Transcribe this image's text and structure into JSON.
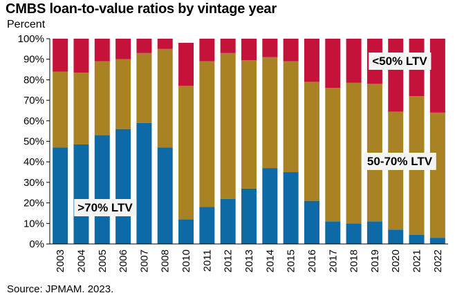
{
  "header": {
    "title": "CMBS loan-to-value ratios by vintage year",
    "unit_label": "Percent"
  },
  "footer": {
    "source": "Source: JPMAM. 2023."
  },
  "colors": {
    "gt70": "#0e6aa6",
    "mid": "#a98224",
    "lt50": "#c4123b",
    "label_bg": "#f4f4f4"
  },
  "chart_data": {
    "type": "bar",
    "stacked": true,
    "categories": [
      "2003",
      "2004",
      "2005",
      "2006",
      "2007",
      "2008",
      "2010",
      "2011",
      "2012",
      "2013",
      "2014",
      "2015",
      "2016",
      "2017",
      "2018",
      "2019",
      "2020",
      "2021",
      "2022"
    ],
    "ylim": [
      0,
      100
    ],
    "yticks": [
      "0%",
      "10%",
      "20%",
      "30%",
      "40%",
      "50%",
      "60%",
      "70%",
      "80%",
      "90%",
      "100%"
    ],
    "grid": false,
    "series": [
      {
        "name": ">70% LTV",
        "values": [
          47,
          48.5,
          53,
          56,
          59,
          47,
          12,
          18,
          22,
          27,
          37,
          35,
          21,
          11,
          10,
          11,
          7,
          4.5,
          3
        ]
      },
      {
        "name": "50-70% LTV",
        "values": [
          37,
          35,
          36,
          34,
          34,
          48,
          65,
          71,
          71,
          62.5,
          54,
          54,
          58,
          65,
          68.5,
          67,
          57.5,
          67.5,
          61
        ]
      },
      {
        "name": "<50% LTV",
        "values": [
          16,
          16.5,
          11,
          10,
          7,
          5,
          21,
          11,
          7,
          10.5,
          9,
          11,
          21,
          24,
          21.5,
          22,
          35.5,
          28,
          36
        ]
      }
    ],
    "annotations": [
      {
        "text": "<50% LTV",
        "series": 2
      },
      {
        "text": "50-70% LTV",
        "series": 1
      },
      {
        "text": ">70% LTV",
        "series": 0
      }
    ]
  }
}
